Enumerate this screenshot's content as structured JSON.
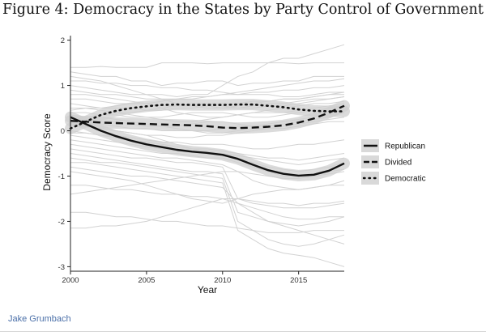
{
  "page": {
    "title": "Figure 4: Democracy in the States by Party Control of Government"
  },
  "credit": "Jake Grumbach",
  "chart_data": {
    "type": "line",
    "title": "Figure 4: Democracy in the States by Party Control of Government",
    "xlabel": "Year",
    "ylabel": "Democracy Score",
    "xlim": [
      2000,
      2018
    ],
    "ylim": [
      -3.1,
      2.1
    ],
    "xticks": [
      2000,
      2005,
      2010,
      2015
    ],
    "yticks": [
      -3,
      -2,
      -1,
      0,
      1,
      2
    ],
    "grid": false,
    "legend": {
      "position": "right",
      "entries": [
        "Republican",
        "Divided",
        "Democratic"
      ]
    },
    "colors": {
      "state_lines": "#d2d2d2",
      "band": "#cfcfcf",
      "fit": "#111111",
      "axis": "#222222"
    },
    "x": [
      2000,
      2001,
      2002,
      2003,
      2004,
      2005,
      2006,
      2007,
      2008,
      2009,
      2010,
      2011,
      2012,
      2013,
      2014,
      2015,
      2016,
      2017,
      2018
    ],
    "series": [
      {
        "name": "Republican",
        "style": "solid",
        "values": [
          0.3,
          0.15,
          0.0,
          -0.12,
          -0.22,
          -0.3,
          -0.36,
          -0.42,
          -0.46,
          -0.49,
          -0.53,
          -0.62,
          -0.75,
          -0.87,
          -0.95,
          -0.99,
          -0.97,
          -0.88,
          -0.72
        ]
      },
      {
        "name": "Divided",
        "style": "dashed",
        "values": [
          0.22,
          0.2,
          0.18,
          0.17,
          0.16,
          0.15,
          0.14,
          0.13,
          0.12,
          0.1,
          0.07,
          0.06,
          0.07,
          0.09,
          0.12,
          0.18,
          0.27,
          0.4,
          0.55
        ]
      },
      {
        "name": "Democratic",
        "style": "dotted",
        "values": [
          0.05,
          0.2,
          0.35,
          0.44,
          0.5,
          0.54,
          0.57,
          0.58,
          0.57,
          0.57,
          0.57,
          0.58,
          0.58,
          0.55,
          0.52,
          0.47,
          0.44,
          0.43,
          0.43
        ]
      }
    ],
    "state_lines": [
      [
        1.4,
        1.4,
        1.42,
        1.4,
        1.4,
        1.4,
        1.5,
        1.5,
        1.5,
        1.48,
        1.5,
        1.5,
        1.5,
        1.5,
        1.5,
        1.48,
        1.5,
        1.5,
        1.5
      ],
      [
        1.3,
        1.25,
        1.2,
        1.2,
        1.1,
        1.1,
        1.0,
        1.05,
        1.05,
        1.1,
        1.1,
        1.0,
        1.05,
        1.05,
        1.1,
        1.1,
        1.2,
        1.2,
        1.2
      ],
      [
        1.0,
        0.95,
        0.9,
        0.85,
        0.8,
        0.8,
        0.8,
        0.75,
        0.8,
        0.8,
        1.0,
        1.2,
        1.3,
        1.5,
        1.6,
        1.6,
        1.7,
        1.8,
        1.9
      ],
      [
        0.9,
        0.85,
        0.8,
        0.8,
        0.75,
        0.7,
        0.7,
        0.7,
        0.75,
        0.75,
        0.8,
        0.8,
        0.85,
        0.85,
        0.9,
        0.9,
        0.95,
        0.95,
        1.0
      ],
      [
        0.7,
        0.7,
        0.65,
        0.6,
        0.6,
        0.6,
        0.55,
        0.55,
        0.6,
        0.6,
        0.55,
        0.5,
        0.5,
        0.55,
        0.55,
        0.6,
        0.65,
        0.7,
        0.75
      ],
      [
        0.6,
        0.55,
        0.5,
        0.5,
        0.5,
        0.45,
        0.45,
        0.5,
        0.5,
        0.55,
        0.5,
        0.55,
        0.6,
        0.65,
        0.7,
        0.7,
        0.75,
        0.8,
        0.8
      ],
      [
        0.5,
        0.5,
        0.45,
        0.4,
        0.35,
        0.3,
        0.3,
        0.35,
        0.4,
        0.4,
        0.4,
        0.35,
        0.3,
        0.3,
        0.35,
        0.4,
        0.45,
        0.5,
        0.55
      ],
      [
        0.4,
        0.4,
        0.35,
        0.35,
        0.3,
        0.3,
        0.25,
        0.2,
        0.2,
        0.25,
        0.3,
        0.35,
        0.4,
        0.4,
        0.4,
        0.45,
        0.5,
        0.55,
        0.6
      ],
      [
        0.35,
        0.3,
        0.3,
        0.25,
        0.2,
        0.15,
        0.1,
        0.1,
        0.15,
        0.2,
        0.2,
        0.15,
        0.1,
        0.1,
        0.15,
        0.2,
        0.25,
        0.3,
        0.4
      ],
      [
        0.3,
        0.25,
        0.2,
        0.2,
        0.15,
        0.1,
        0.1,
        0.05,
        0.0,
        0.0,
        0.05,
        0.1,
        0.1,
        0.15,
        0.2,
        0.25,
        0.3,
        0.35,
        0.4
      ],
      [
        0.2,
        0.2,
        0.15,
        0.1,
        0.05,
        0.05,
        0.0,
        0.0,
        0.0,
        -0.05,
        -0.05,
        0.0,
        0.05,
        0.05,
        0.1,
        0.15,
        0.2,
        0.25,
        0.3
      ],
      [
        0.1,
        0.1,
        0.05,
        0.0,
        -0.05,
        -0.1,
        -0.1,
        -0.15,
        -0.15,
        -0.1,
        -0.1,
        -0.05,
        0.0,
        0.05,
        0.05,
        0.1,
        0.15,
        0.2,
        0.2
      ],
      [
        0.0,
        -0.05,
        -0.1,
        -0.1,
        -0.15,
        -0.2,
        -0.25,
        -0.25,
        -0.3,
        -0.3,
        -0.3,
        -0.35,
        -0.4,
        -0.4,
        -0.35,
        -0.3,
        -0.3,
        -0.25,
        -0.2
      ],
      [
        -0.1,
        -0.15,
        -0.2,
        -0.25,
        -0.3,
        -0.35,
        -0.4,
        -0.45,
        -0.45,
        -0.5,
        -0.55,
        -0.6,
        -0.7,
        -0.8,
        -0.85,
        -0.9,
        -0.85,
        -0.8,
        -0.7
      ],
      [
        -0.2,
        -0.25,
        -0.3,
        -0.35,
        -0.4,
        -0.45,
        -0.5,
        -0.5,
        -0.55,
        -0.6,
        -0.6,
        -0.7,
        -0.8,
        -0.9,
        -1.0,
        -1.0,
        -0.95,
        -0.9,
        -0.85
      ],
      [
        -0.3,
        -0.35,
        -0.4,
        -0.45,
        -0.5,
        -0.55,
        -0.6,
        -0.6,
        -0.65,
        -0.7,
        -0.75,
        -0.9,
        -1.1,
        -1.2,
        -1.25,
        -1.3,
        -1.25,
        -1.2,
        -1.1
      ],
      [
        -0.4,
        -0.45,
        -0.5,
        -0.55,
        -0.6,
        -0.6,
        -0.65,
        -0.7,
        -0.7,
        -0.75,
        -0.8,
        -1.5,
        -1.6,
        -1.65,
        -1.7,
        -1.7,
        -1.7,
        -1.65,
        -1.6
      ],
      [
        -0.5,
        -0.55,
        -0.6,
        -0.65,
        -0.7,
        -0.75,
        -0.8,
        -0.85,
        -0.9,
        -0.9,
        -0.95,
        -1.8,
        -1.9,
        -2.0,
        -2.05,
        -2.1,
        -2.05,
        -2.0,
        -1.9
      ],
      [
        -0.6,
        -0.65,
        -0.7,
        -0.7,
        -0.75,
        -0.8,
        -0.85,
        -0.9,
        -0.95,
        -1.0,
        -1.05,
        -2.0,
        -2.2,
        -2.4,
        -2.5,
        -2.55,
        -2.5,
        -2.4,
        -2.3
      ],
      [
        -0.7,
        -0.7,
        -0.75,
        -0.8,
        -0.85,
        -0.9,
        -0.95,
        -1.0,
        -1.05,
        -1.1,
        -1.15,
        -2.2,
        -2.4,
        -2.6,
        -2.7,
        -2.75,
        -2.8,
        -2.9,
        -3.0
      ],
      [
        -0.8,
        -0.85,
        -0.9,
        -0.95,
        -1.0,
        -1.0,
        -1.05,
        -1.1,
        -1.15,
        -1.2,
        -1.25,
        -1.6,
        -1.8,
        -2.0,
        -2.1,
        -2.2,
        -2.3,
        -2.4,
        -2.5
      ],
      [
        -1.2,
        -1.2,
        -1.25,
        -1.3,
        -1.3,
        -1.35,
        -1.4,
        -1.4,
        -1.45,
        -1.45,
        -1.5,
        -1.5,
        -1.55,
        -1.6,
        -1.6,
        -1.65,
        -1.6,
        -1.6,
        -1.55
      ],
      [
        -1.4,
        -1.35,
        -1.3,
        -1.25,
        -1.2,
        -1.15,
        -1.1,
        -1.05,
        -1.0,
        -0.95,
        -0.9,
        -0.9,
        -0.95,
        -1.0,
        -1.05,
        -1.05,
        -1.0,
        -0.95,
        -0.9
      ],
      [
        -2.15,
        -2.15,
        -2.1,
        -2.1,
        -2.05,
        -2.0,
        -1.9,
        -1.8,
        -1.7,
        -1.6,
        -1.5,
        -1.6,
        -1.7,
        -1.8,
        -1.9,
        -1.95,
        -1.95,
        -1.9,
        -1.9
      ],
      [
        -1.8,
        -1.8,
        -1.85,
        -1.9,
        -1.9,
        -1.95,
        -2.0,
        -2.0,
        -2.05,
        -2.1,
        -2.1,
        -2.15,
        -2.2,
        -2.25,
        -2.25,
        -2.25,
        -2.2,
        -2.2,
        -2.2
      ],
      [
        1.2,
        1.15,
        1.1,
        1.0,
        0.9,
        0.8,
        0.7,
        0.6,
        0.55,
        0.5,
        0.5,
        0.5,
        0.55,
        0.6,
        0.6,
        0.65,
        0.7,
        0.7,
        0.75
      ],
      [
        0.8,
        0.8,
        0.75,
        0.7,
        0.65,
        0.6,
        0.5,
        0.4,
        0.35,
        0.3,
        0.3,
        0.35,
        0.4,
        0.45,
        0.5,
        0.55,
        0.6,
        0.6,
        0.65
      ],
      [
        0.15,
        0.1,
        0.05,
        0.0,
        -0.05,
        -0.1,
        -0.2,
        -0.3,
        -0.4,
        -0.4,
        -0.45,
        -0.5,
        -0.55,
        -0.6,
        -0.6,
        -0.65,
        -0.6,
        -0.55,
        -0.5
      ],
      [
        -0.05,
        -0.05,
        -0.1,
        -0.15,
        -0.2,
        -0.25,
        -0.3,
        -0.35,
        -0.4,
        -0.45,
        -0.5,
        -0.55,
        -0.6,
        -0.65,
        -0.7,
        -0.75,
        -0.7,
        -0.65,
        -0.6
      ],
      [
        0.45,
        0.5,
        0.5,
        0.55,
        0.6,
        0.6,
        0.65,
        0.7,
        0.7,
        0.75,
        0.8,
        0.85,
        0.9,
        0.95,
        1.0,
        1.05,
        1.1,
        1.1,
        1.15
      ],
      [
        -0.9,
        -0.95,
        -1.0,
        -1.05,
        -1.1,
        -1.2,
        -1.3,
        -1.4,
        -1.5,
        -1.55,
        -1.6,
        -1.5,
        -1.4,
        -1.35,
        -1.3,
        -1.3,
        -1.25,
        -1.2,
        -1.2
      ],
      [
        0.25,
        0.3,
        0.35,
        0.4,
        0.4,
        0.45,
        0.5,
        0.55,
        0.55,
        0.6,
        0.6,
        0.6,
        0.65,
        0.65,
        0.7,
        0.7,
        0.75,
        0.8,
        0.85
      ],
      [
        1.1,
        1.1,
        1.05,
        1.05,
        1.0,
        1.0,
        0.95,
        0.95,
        0.9,
        0.9,
        0.85,
        0.8,
        0.8,
        0.8,
        0.75,
        0.75,
        0.8,
        0.85,
        0.85
      ]
    ]
  }
}
